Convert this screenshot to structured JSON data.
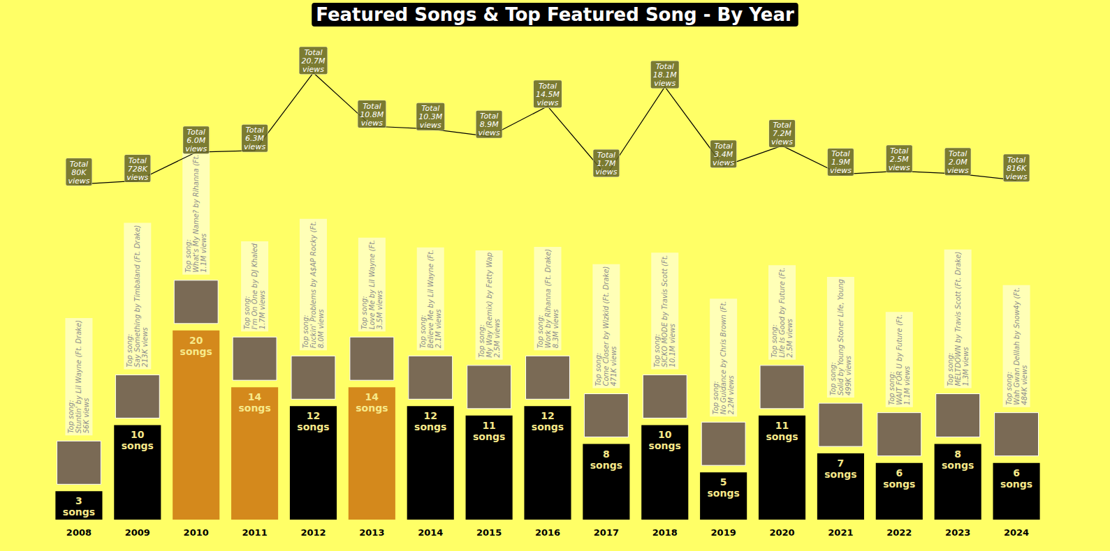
{
  "chart_data": {
    "type": "bar",
    "title": "Featured Songs & Top Featured Song - By Year",
    "categories": [
      "2008",
      "2009",
      "2010",
      "2011",
      "2012",
      "2013",
      "2014",
      "2015",
      "2016",
      "2017",
      "2018",
      "2019",
      "2020",
      "2021",
      "2022",
      "2023",
      "2024"
    ],
    "series": [
      {
        "type": "bar",
        "values": [
          3,
          10,
          20,
          14,
          12,
          14,
          12,
          11,
          12,
          8,
          10,
          5,
          11,
          7,
          6,
          8,
          6
        ],
        "colors": [
          "#000000",
          "#000000",
          "#d4891c",
          "#d4891c",
          "#000000",
          "#d4891c",
          "#000000",
          "#000000",
          "#000000",
          "#000000",
          "#000000",
          "#000000",
          "#000000",
          "#000000",
          "#000000",
          "#000000",
          "#000000"
        ],
        "data_labels": true,
        "label_suffix": "songs"
      },
      {
        "type": "line",
        "axis": "y2",
        "color": "#000000",
        "values": [
          80000,
          728000,
          6000000,
          6300000,
          20700000,
          10800000,
          10300000,
          8900000,
          14500000,
          1700000,
          18100000,
          3400000,
          7200000,
          1900000,
          2500000,
          2000000,
          816000
        ],
        "value_labels": [
          "80K",
          "728K",
          "6.0M",
          "6.3M",
          "20.7M",
          "10.8M",
          "10.3M",
          "8.9M",
          "14.5M",
          "1.7M",
          "18.1M",
          "3.4M",
          "7.2M",
          "1.9M",
          "2.5M",
          "2.0M",
          "816K"
        ],
        "data_labels": true,
        "label_prefix": "Total",
        "label_suffix": "views"
      }
    ],
    "top_songs": {
      "heading": "Top song:",
      "songs": [
        "Stuntin' by Lil Wayne (Ft. Drake)",
        "Say Something by Timbaland (Ft. Drake)",
        "What's My Name? by Rihanna (Ft.",
        "I'm On One by DJ Khaled",
        "Fuckin' Problems by A$AP Rocky (Ft.",
        "Love Me by Lil Wayne (Ft.",
        "Believe Me by Lil Wayne (Ft.",
        "My Way (Remix) by Fetty Wap",
        "Work by Rihanna (Ft. Drake)",
        "Come Closer by Wizkid (Ft. Drake)",
        "SICKO MODE by Travis Scott (Ft.",
        "No Guidance by Chris Brown (Ft.",
        "Life Is Good by Future (Ft.",
        "Solid by Young Stoner Life, Young",
        "WAIT FOR U by Future (Ft.",
        "MELTDOWN by Travis Scott (Ft. Drake)",
        "Wah Gwan Delilah by Snow4y (Ft."
      ],
      "views_labels": [
        "56K views",
        "213K views",
        "1.1M views",
        "1.7M views",
        "8.0M views",
        "3.5M views",
        "2.1M views",
        "2.5M views",
        "8.3M views",
        "471K views",
        "10.1M views",
        "2.2M views",
        "2.5M views",
        "499K views",
        "1.1M views",
        "1.3M views",
        "484K views"
      ]
    },
    "ylim": [
      0,
      52
    ],
    "y2lim": [
      -62000000,
      29000000
    ],
    "tick_labels": "x",
    "grid": false
  }
}
